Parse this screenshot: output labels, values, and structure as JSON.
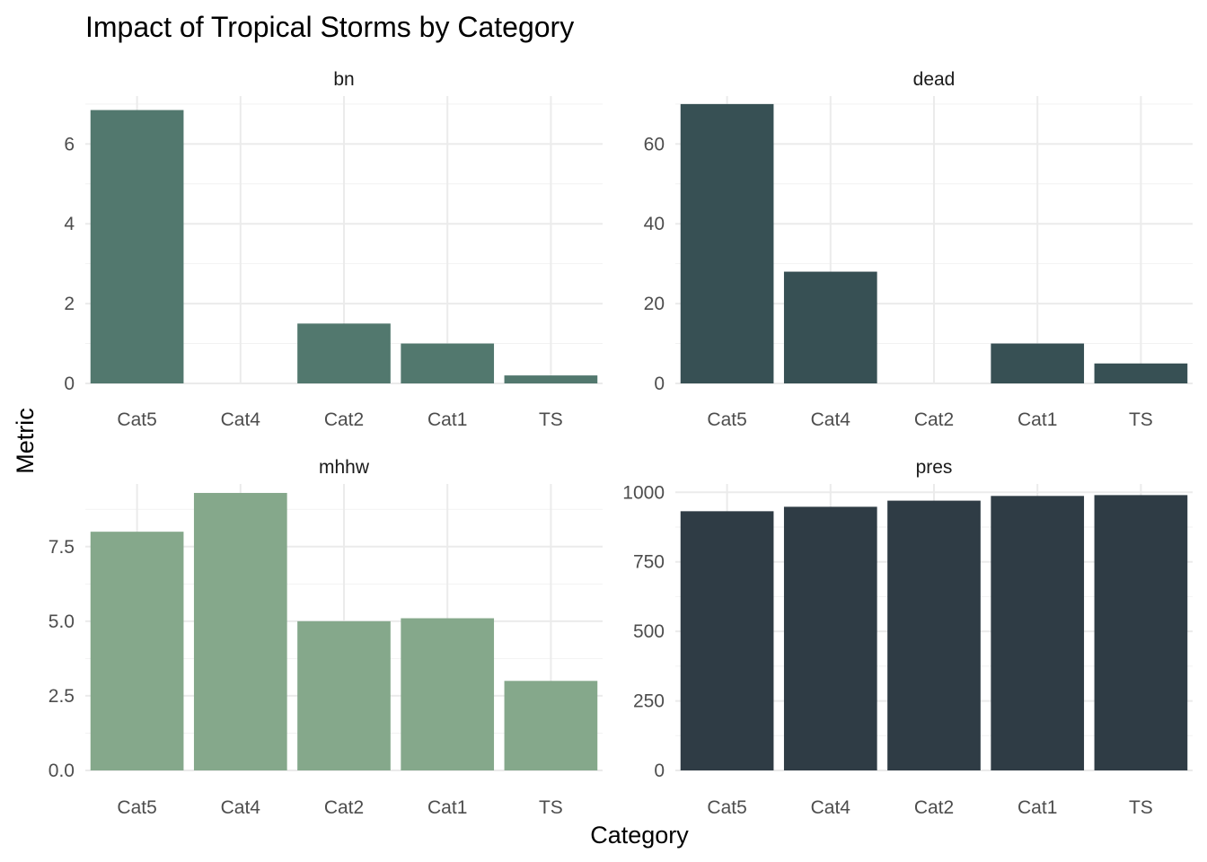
{
  "chart_data": {
    "type": "bar",
    "title": "Impact of Tropical Storms by Category",
    "xlabel": "Category",
    "ylabel": "Metric",
    "categories": [
      "Cat5",
      "Cat4",
      "Cat2",
      "Cat1",
      "TS"
    ],
    "facets": [
      {
        "name": "bn",
        "values": [
          6.85,
          0,
          1.5,
          1.0,
          0.2
        ],
        "ylim": [
          0,
          7.2
        ],
        "yticks": [
          0,
          2,
          4,
          6
        ],
        "ytick_labels": [
          "0",
          "2",
          "4",
          "6"
        ],
        "color": "#52786E"
      },
      {
        "name": "dead",
        "values": [
          70,
          28,
          0,
          10,
          5
        ],
        "ylim": [
          0,
          72
        ],
        "yticks": [
          0,
          20,
          40,
          60
        ],
        "ytick_labels": [
          "0",
          "20",
          "40",
          "60"
        ],
        "color": "#375054"
      },
      {
        "name": "mhhw",
        "values": [
          8.0,
          9.3,
          5.0,
          5.1,
          3.0
        ],
        "ylim": [
          0,
          9.6
        ],
        "yticks": [
          0,
          2.5,
          5,
          7.5
        ],
        "ytick_labels": [
          "0.0",
          "2.5",
          "5.0",
          "7.5"
        ],
        "color": "#85A88B"
      },
      {
        "name": "pres",
        "values": [
          932,
          948,
          970,
          987,
          990
        ],
        "ylim": [
          0,
          1030
        ],
        "yticks": [
          0,
          250,
          500,
          750,
          1000
        ],
        "ytick_labels": [
          "0",
          "250",
          "500",
          "750",
          "1000"
        ],
        "color": "#2F3C45"
      }
    ]
  }
}
